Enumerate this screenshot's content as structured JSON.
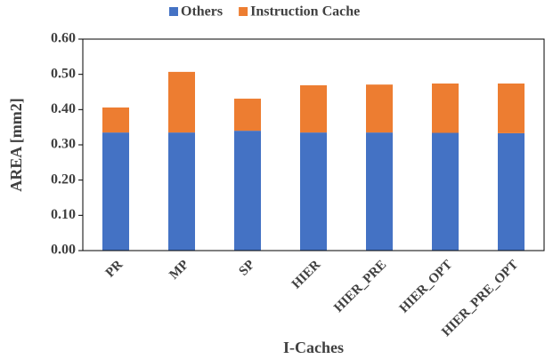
{
  "chart_data": {
    "type": "stacked_bar",
    "x_label": "I-Caches",
    "y_label": "AREA [mm2]",
    "categories": [
      "PR",
      "MP",
      "SP",
      "HIER",
      "HIER_PRE",
      "HIER_OPT",
      "HIER_PRE_OPT"
    ],
    "series": [
      {
        "name": "Others",
        "color": "#4472c4",
        "values": [
          0.335,
          0.335,
          0.34,
          0.335,
          0.335,
          0.334,
          0.333
        ]
      },
      {
        "name": "Instruction Cache",
        "color": "#ed7d31",
        "values": [
          0.071,
          0.172,
          0.091,
          0.134,
          0.136,
          0.14,
          0.141
        ]
      }
    ],
    "ylim": [
      0,
      0.6
    ],
    "yticks": [
      {
        "value": 0,
        "label": "0.00"
      },
      {
        "value": 0.1,
        "label": "0.10"
      },
      {
        "value": 0.2,
        "label": "0.20"
      },
      {
        "value": 0.3,
        "label": "0.30"
      },
      {
        "value": 0.4,
        "label": "0.40"
      },
      {
        "value": 0.5,
        "label": "0.50"
      },
      {
        "value": 0.6,
        "label": "0.60"
      }
    ],
    "legend": "top"
  }
}
